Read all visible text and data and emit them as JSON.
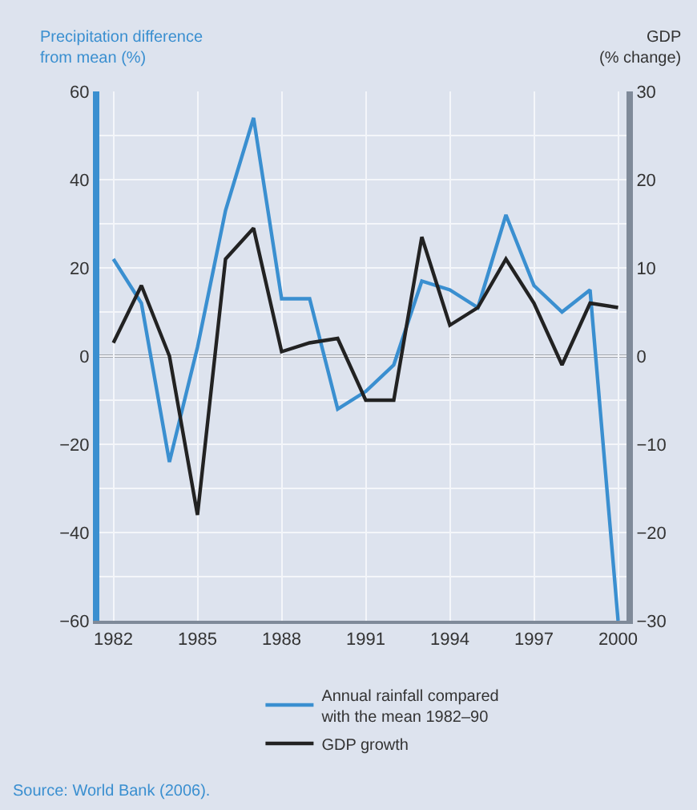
{
  "chart_data": {
    "type": "line",
    "ylabel": "Precipitation difference\nfrom mean (%)",
    "y2label": "GDP\n(% change)",
    "x": [
      1982,
      1983,
      1984,
      1985,
      1986,
      1987,
      1988,
      1989,
      1990,
      1991,
      1992,
      1993,
      1994,
      1995,
      1996,
      1997,
      1998,
      1999,
      2000
    ],
    "series": [
      {
        "name": "Annual rainfall compared\nwith the mean 1982–90",
        "color": "#3a8fd0",
        "values": [
          22,
          12,
          -24,
          2,
          33,
          54,
          13,
          13,
          -12,
          -8,
          -2,
          17,
          15,
          11,
          32,
          16,
          10,
          15,
          -60
        ]
      },
      {
        "name": "GDP growth",
        "color": "#222222",
        "axis": "y2",
        "values": [
          1.5,
          8,
          0,
          -18,
          11,
          14.5,
          0.5,
          1.5,
          2,
          -5,
          -5,
          13.5,
          3.5,
          5.5,
          11,
          6,
          -1,
          6,
          5.5
        ]
      }
    ],
    "xlim": [
      1981.5,
      2000.3
    ],
    "xticks": [
      1982,
      1985,
      1988,
      1991,
      1994,
      1997,
      2000
    ],
    "ylim": [
      -60,
      60
    ],
    "yticks": [
      {
        "value": -60,
        "label": "−60"
      },
      {
        "value": -50,
        "label": null
      },
      {
        "value": -40,
        "label": "−40"
      },
      {
        "value": -30,
        "label": null
      },
      {
        "value": -20,
        "label": "−20"
      },
      {
        "value": -10,
        "label": null
      },
      0,
      {
        "value": 10,
        "label": null
      },
      20,
      {
        "value": 30,
        "label": null
      },
      40,
      {
        "value": 50,
        "label": null
      },
      60
    ],
    "y2lim": [
      -30,
      30
    ],
    "y2ticks": [
      {
        "value": -30,
        "label": "−30"
      },
      {
        "value": -20,
        "label": "−20"
      },
      {
        "value": -10,
        "label": "−10"
      },
      0,
      10,
      20,
      30
    ],
    "ref_lines": [
      {
        "axis": "y",
        "value": 0,
        "color": "#666666"
      }
    ],
    "grid": true,
    "legend": "bottom",
    "line_style": "solid",
    "marker": "none",
    "annotations": [
      "Source: World Bank (2006)."
    ]
  }
}
